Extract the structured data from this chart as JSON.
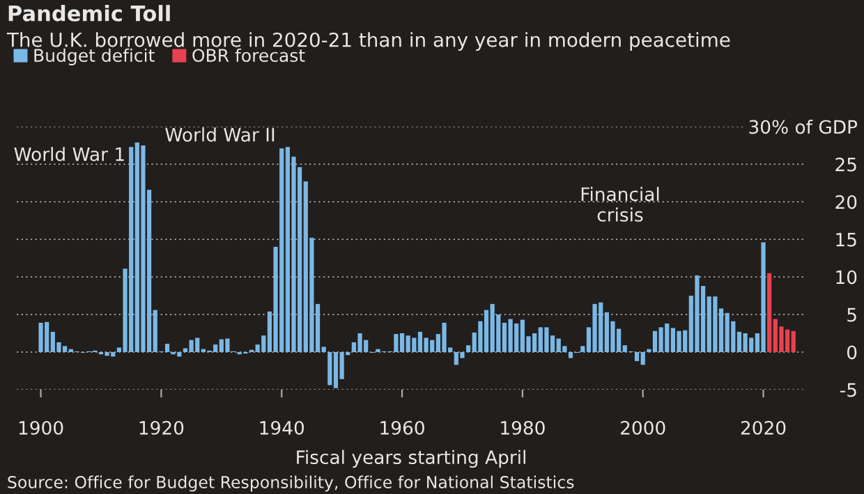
{
  "chart_data": {
    "type": "bar",
    "title": "Pandemic Toll",
    "subtitle": "The U.K. borrowed more in 2020-21 than in any year in modern peacetime",
    "xlabel": "Fiscal years starting April",
    "series": [
      {
        "name": "Budget deficit",
        "color": "#7ab8e6",
        "x": [
          1900,
          1901,
          1902,
          1903,
          1904,
          1905,
          1906,
          1907,
          1908,
          1909,
          1910,
          1911,
          1912,
          1913,
          1914,
          1915,
          1916,
          1917,
          1918,
          1919,
          1920,
          1921,
          1922,
          1923,
          1924,
          1925,
          1926,
          1927,
          1928,
          1929,
          1930,
          1931,
          1932,
          1933,
          1934,
          1935,
          1936,
          1937,
          1938,
          1939,
          1940,
          1941,
          1942,
          1943,
          1944,
          1945,
          1946,
          1947,
          1948,
          1949,
          1950,
          1951,
          1952,
          1953,
          1954,
          1955,
          1956,
          1957,
          1958,
          1959,
          1960,
          1961,
          1962,
          1963,
          1964,
          1965,
          1966,
          1967,
          1968,
          1969,
          1970,
          1971,
          1972,
          1973,
          1974,
          1975,
          1976,
          1977,
          1978,
          1979,
          1980,
          1981,
          1982,
          1983,
          1984,
          1985,
          1986,
          1987,
          1988,
          1989,
          1990,
          1991,
          1992,
          1993,
          1994,
          1995,
          1996,
          1997,
          1998,
          1999,
          2000,
          2001,
          2002,
          2003,
          2004,
          2005,
          2006,
          2007,
          2008,
          2009,
          2010,
          2011,
          2012,
          2013,
          2014,
          2015,
          2016,
          2017,
          2018,
          2019,
          2020
        ],
        "values": [
          3.9,
          4.0,
          2.7,
          1.3,
          0.8,
          0.4,
          0.1,
          -0.1,
          0.1,
          0.2,
          -0.3,
          -0.5,
          -0.6,
          0.6,
          11.1,
          27.3,
          27.9,
          27.5,
          21.6,
          5.6,
          0.1,
          1.1,
          -0.3,
          -0.6,
          0.5,
          1.6,
          1.9,
          0.4,
          0.2,
          1.0,
          1.7,
          1.8,
          0.1,
          -0.3,
          -0.2,
          0.3,
          1.0,
          2.2,
          5.4,
          14.0,
          27.1,
          27.3,
          26.0,
          24.6,
          22.7,
          15.2,
          6.4,
          0.7,
          -4.4,
          -4.8,
          -3.6,
          -0.4,
          1.3,
          2.5,
          1.6,
          -0.1,
          0.4,
          0.1,
          0.1,
          2.4,
          2.5,
          2.2,
          1.9,
          2.7,
          1.9,
          1.6,
          2.4,
          3.9,
          0.6,
          -1.7,
          -0.8,
          0.9,
          2.6,
          4.1,
          5.6,
          6.4,
          5.0,
          3.9,
          4.4,
          3.8,
          4.3,
          2.1,
          2.5,
          3.3,
          3.3,
          2.2,
          1.8,
          0.8,
          -0.8,
          -0.1,
          0.8,
          3.3,
          6.4,
          6.6,
          5.3,
          4.1,
          3.1,
          0.9,
          0.1,
          -1.2,
          -1.7,
          0.4,
          2.8,
          3.3,
          3.8,
          3.2,
          2.8,
          2.9,
          7.5,
          10.2,
          8.8,
          7.4,
          7.4,
          5.8,
          5.2,
          4.1,
          2.7,
          2.5,
          1.9,
          2.5,
          14.6
        ]
      },
      {
        "name": "OBR forecast",
        "color": "#e8414f",
        "x": [
          2021,
          2022,
          2023,
          2024,
          2025
        ],
        "values": [
          10.5,
          4.4,
          3.4,
          3.0,
          2.8
        ]
      }
    ],
    "xlim": [
      1896,
      2027
    ],
    "xticks": [
      1900,
      1920,
      1940,
      1960,
      1980,
      2000,
      2020
    ],
    "ylim": [
      -5,
      30
    ],
    "yticks": [
      -5,
      0,
      5,
      10,
      15,
      20,
      25,
      {
        "value": 30,
        "label": "30% of GDP"
      }
    ],
    "grid": "y",
    "legend": "top left",
    "annotations": [
      "World War 1",
      "World War II",
      "Financial\ncrisis",
      "Source: Office for Budget Responsibility, Office for National Statistics"
    ]
  }
}
